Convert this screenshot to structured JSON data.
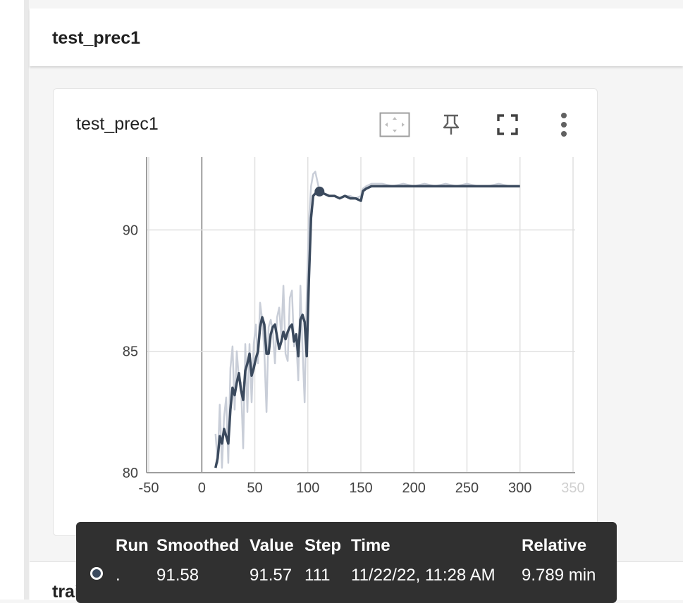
{
  "section": {
    "title": "test_prec1"
  },
  "card": {
    "title": "test_prec1",
    "toolbar": {
      "fit_icon": "fit-domain-icon",
      "pin_icon": "pin-icon",
      "fullscreen_icon": "fullscreen-icon",
      "more_icon": "more-vert-icon"
    }
  },
  "chart_data": {
    "type": "line",
    "title": "test_prec1",
    "xlabel": "",
    "ylabel": "",
    "xlim": [
      -52,
      352
    ],
    "ylim": [
      80,
      93
    ],
    "x_ticks": [
      "-50",
      "0",
      "50",
      "100",
      "150",
      "200",
      "250",
      "300",
      "350"
    ],
    "y_ticks": [
      "80",
      "85",
      "90"
    ],
    "grid": true,
    "series": [
      {
        "role": "raw",
        "color": "#c9ced8",
        "x": [
          13,
          15,
          17,
          19,
          21,
          23,
          25,
          27,
          29,
          31,
          33,
          35,
          37,
          39,
          41,
          43,
          45,
          47,
          49,
          51,
          53,
          55,
          57,
          59,
          61,
          63,
          65,
          67,
          69,
          71,
          73,
          75,
          77,
          79,
          81,
          83,
          85,
          87,
          89,
          91,
          93,
          95,
          97,
          99,
          101,
          103,
          105,
          107,
          109,
          111,
          115,
          120,
          125,
          130,
          135,
          140,
          145,
          150,
          152,
          155,
          160,
          170,
          180,
          190,
          200,
          210,
          220,
          230,
          240,
          250,
          260,
          270,
          280,
          290,
          300
        ],
        "y": [
          81.6,
          80.4,
          82.8,
          80.2,
          82.3,
          83.1,
          80.4,
          84.3,
          85.2,
          82.6,
          85.0,
          83.9,
          83.7,
          81.0,
          85.3,
          82.5,
          85.3,
          82.9,
          85.3,
          86.1,
          84.5,
          87.0,
          86.3,
          85.0,
          82.5,
          86.0,
          86.3,
          85.8,
          84.5,
          86.4,
          86.8,
          85.6,
          87.7,
          84.9,
          84.6,
          87.2,
          87.5,
          85.2,
          85.5,
          83.8,
          87.7,
          85.1,
          82.9,
          87.3,
          90.4,
          91.8,
          92.3,
          92.4,
          92.0,
          91.6,
          91.5,
          91.4,
          91.4,
          91.3,
          91.4,
          91.4,
          91.3,
          91.4,
          91.7,
          91.8,
          91.9,
          91.9,
          91.8,
          91.9,
          91.8,
          91.9,
          91.8,
          91.9,
          91.8,
          91.9,
          91.8,
          91.8,
          91.9,
          91.8,
          91.8
        ]
      },
      {
        "role": "smoothed",
        "color": "#3b4a5e",
        "x": [
          13,
          15,
          17,
          19,
          21,
          23,
          25,
          27,
          29,
          31,
          33,
          35,
          37,
          39,
          41,
          43,
          45,
          47,
          49,
          51,
          53,
          55,
          57,
          59,
          61,
          63,
          65,
          67,
          69,
          71,
          73,
          75,
          77,
          79,
          81,
          83,
          85,
          87,
          89,
          91,
          93,
          95,
          97,
          99,
          101,
          103,
          105,
          107,
          109,
          111,
          115,
          120,
          125,
          130,
          135,
          140,
          145,
          150,
          152,
          155,
          160,
          170,
          180,
          190,
          200,
          210,
          220,
          230,
          240,
          250,
          260,
          270,
          280,
          290,
          300
        ],
        "y": [
          80.2,
          80.6,
          81.5,
          81.2,
          81.8,
          81.5,
          81.2,
          82.6,
          83.5,
          83.2,
          83.7,
          84.1,
          83.4,
          83.0,
          84.2,
          84.5,
          84.9,
          84.0,
          84.3,
          84.7,
          85.0,
          86.0,
          86.4,
          86.1,
          84.9,
          84.9,
          85.7,
          86.0,
          86.1,
          85.6,
          85.1,
          85.4,
          85.8,
          85.5,
          85.8,
          86.0,
          86.1,
          85.4,
          85.7,
          84.8,
          86.3,
          86.5,
          86.2,
          84.8,
          88.0,
          90.5,
          91.4,
          91.5,
          91.6,
          91.58,
          91.5,
          91.4,
          91.4,
          91.3,
          91.4,
          91.3,
          91.3,
          91.2,
          91.6,
          91.7,
          91.8,
          91.8,
          91.8,
          91.8,
          91.8,
          91.8,
          91.8,
          91.8,
          91.8,
          91.8,
          91.8,
          91.8,
          91.8,
          91.8,
          91.8
        ]
      }
    ],
    "highlight": {
      "x": 111,
      "y": 91.58
    }
  },
  "tooltip": {
    "headers": {
      "run": "Run",
      "smoothed": "Smoothed",
      "value": "Value",
      "step": "Step",
      "time": "Time",
      "relative": "Relative"
    },
    "row": {
      "run": ".",
      "smoothed": "91.58",
      "value": "91.57",
      "step": "111",
      "time": "11/22/22, 11:28 AM",
      "relative": "9.789 min"
    }
  },
  "next_section": {
    "title": "train_err"
  }
}
